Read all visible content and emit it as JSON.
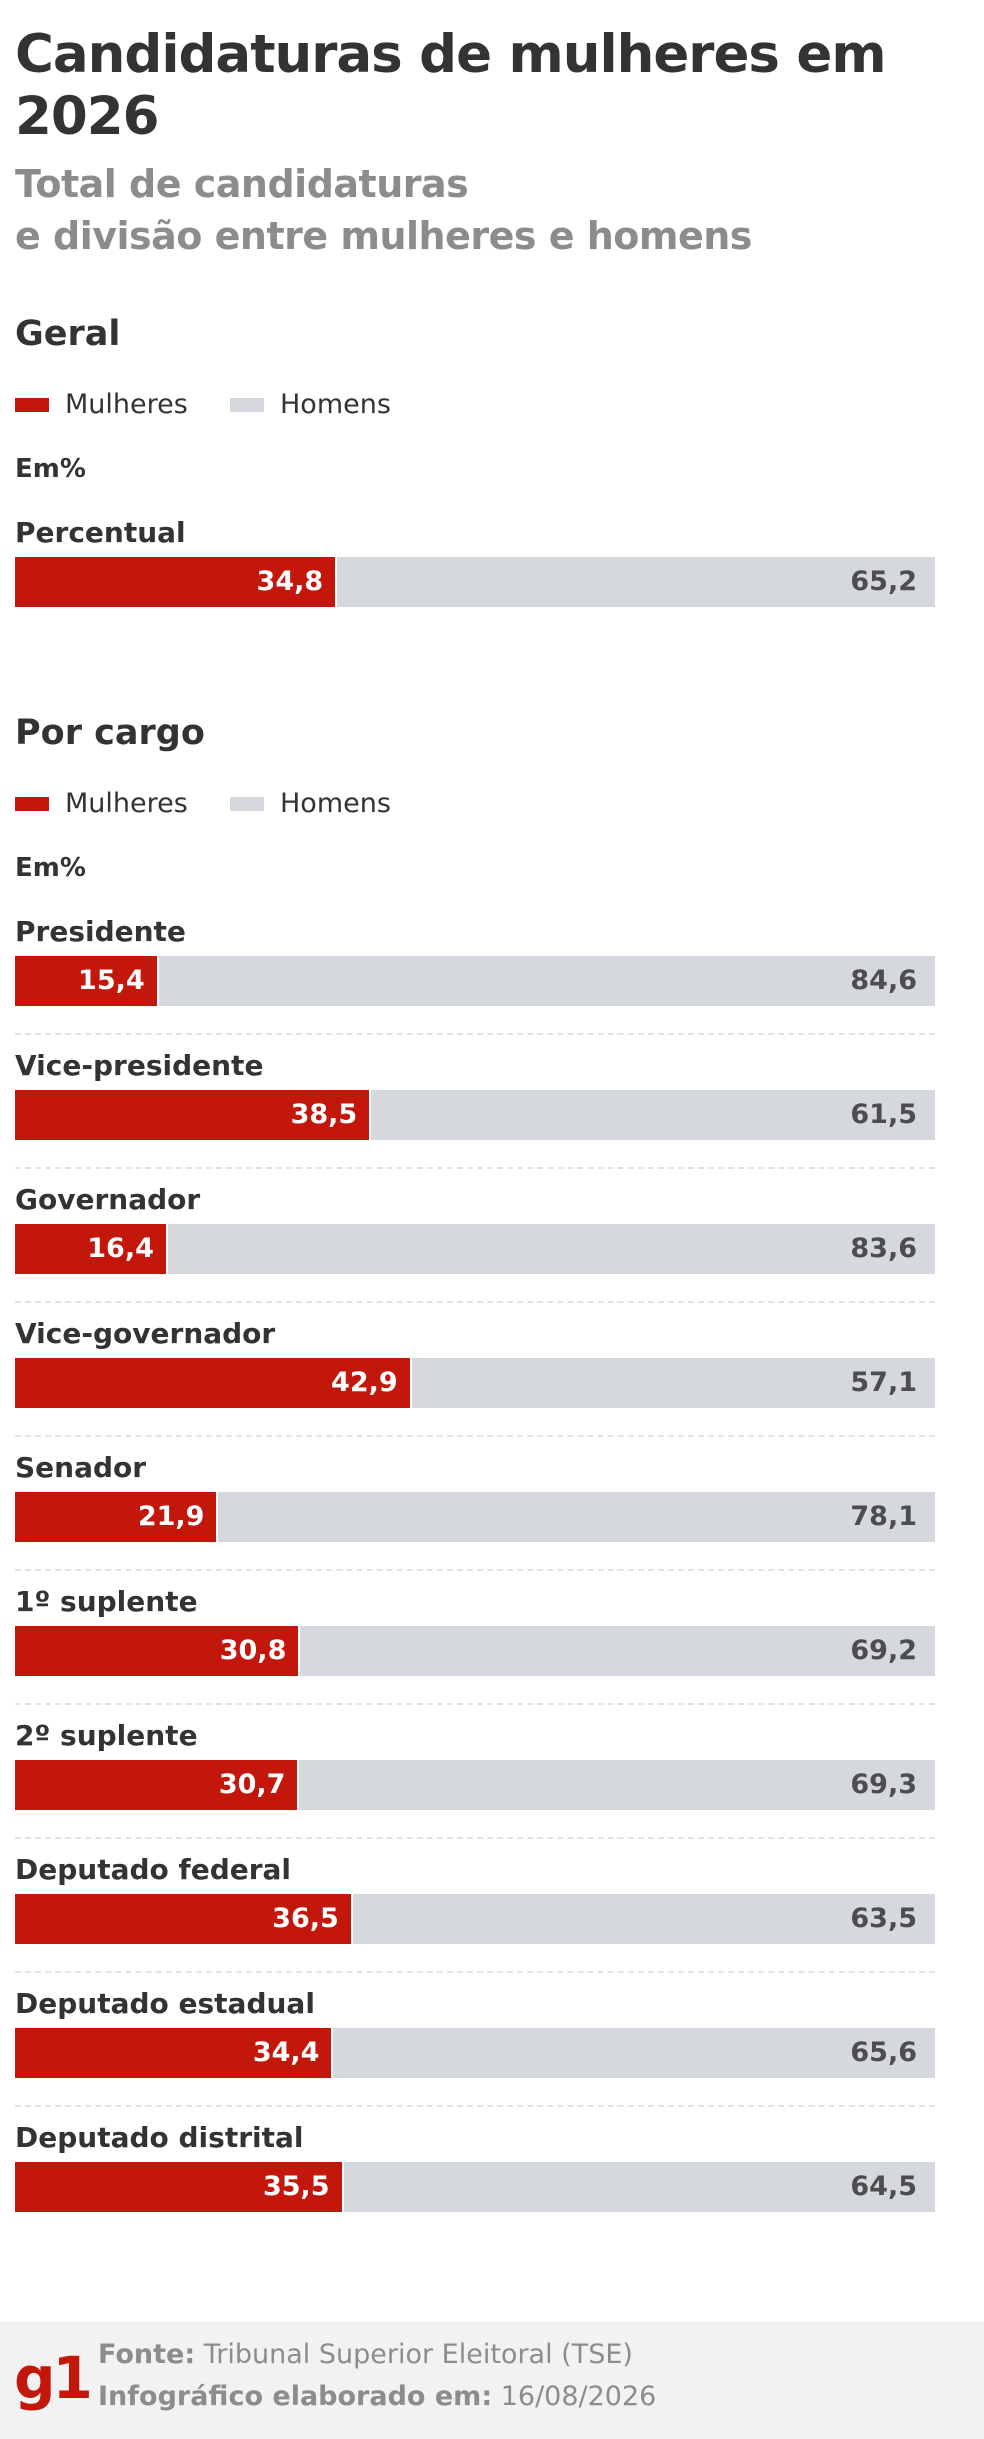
{
  "title": "Candidaturas de mulheres em 2026",
  "subtitle_line1": "Total de candidaturas",
  "subtitle_line2": "e divisão entre mulheres e homens",
  "colors": {
    "mulheres": "#c4170c",
    "homens": "#d5d8dc",
    "divider": "#e3e3e3"
  },
  "chart_data": [
    {
      "type": "bar",
      "stacked": true,
      "orientation": "horizontal",
      "title": "Geral",
      "legend": [
        "Mulheres",
        "Homens"
      ],
      "unit": "Em%",
      "categories": [
        "Percentual"
      ],
      "series": [
        {
          "name": "Mulheres",
          "values": [
            34.8
          ],
          "labels": [
            "34,8"
          ]
        },
        {
          "name": "Homens",
          "values": [
            65.2
          ],
          "labels": [
            "65,2"
          ]
        }
      ],
      "xlim": [
        0,
        100
      ]
    },
    {
      "type": "bar",
      "stacked": true,
      "orientation": "horizontal",
      "title": "Por cargo",
      "legend": [
        "Mulheres",
        "Homens"
      ],
      "unit": "Em%",
      "categories": [
        "Presidente",
        "Vice-presidente",
        "Governador",
        "Vice-governador",
        "Senador",
        "1º suplente",
        "2º suplente",
        "Deputado federal",
        "Deputado estadual",
        "Deputado distrital"
      ],
      "series": [
        {
          "name": "Mulheres",
          "values": [
            15.4,
            38.5,
            16.4,
            42.9,
            21.9,
            30.8,
            30.7,
            36.5,
            34.4,
            35.5
          ],
          "labels": [
            "15,4",
            "38,5",
            "16,4",
            "42,9",
            "21,9",
            "30,8",
            "30,7",
            "36,5",
            "34,4",
            "35,5"
          ]
        },
        {
          "name": "Homens",
          "values": [
            84.6,
            61.5,
            83.6,
            57.1,
            78.1,
            69.2,
            69.3,
            63.5,
            65.6,
            64.5
          ],
          "labels": [
            "84,6",
            "61,5",
            "83,6",
            "57,1",
            "78,1",
            "69,2",
            "69,3",
            "63,5",
            "65,6",
            "64,5"
          ]
        }
      ],
      "xlim": [
        0,
        100
      ]
    }
  ],
  "footer": {
    "logo": "g1",
    "source_label": "Fonte:",
    "source_value": "Tribunal Superior Eleitoral (TSE)",
    "date_label": "Infográfico elaborado em:",
    "date_value": "16/08/2026"
  }
}
